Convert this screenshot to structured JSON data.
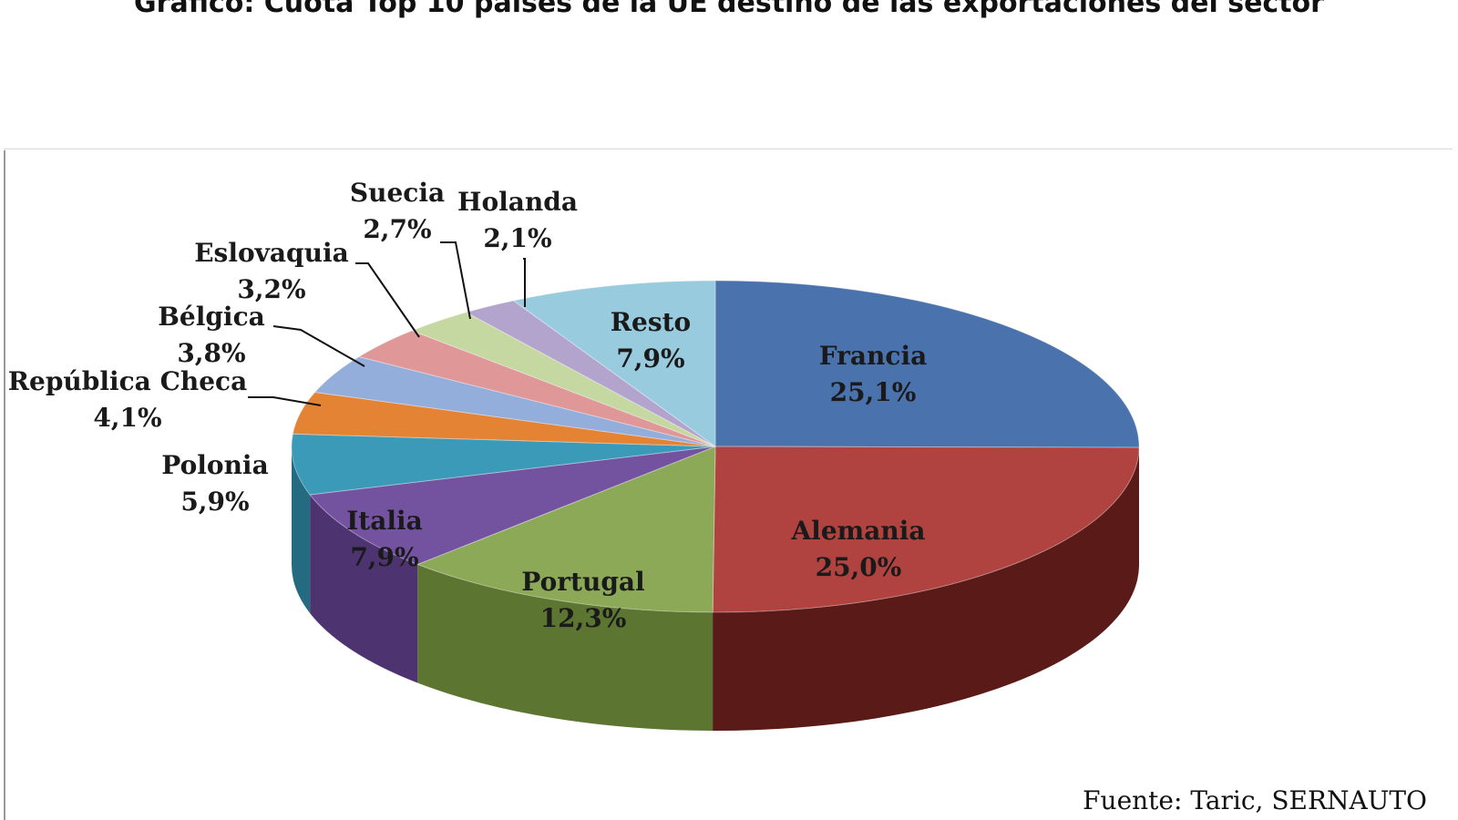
{
  "title": "Gráfico:  Cuota Top 10 paises de la UE destino de las exportaciones del sector",
  "source": "Fuente:  Taric, SERNAUTO",
  "chart_data": {
    "type": "pie",
    "title": "Gráfico:  Cuota Top 10 paises de la UE destino de las exportaciones del sector",
    "style": "3d-pie",
    "slices": [
      {
        "label": "Francia",
        "value": 25.1,
        "value_label": "25,1%",
        "color": "#4a72ac",
        "side_color": "#2c4670"
      },
      {
        "label": "Alemania",
        "value": 25.0,
        "value_label": "25,0%",
        "color": "#b04340",
        "side_color": "#5a1a18"
      },
      {
        "label": "Portugal",
        "value": 12.3,
        "value_label": "12,3%",
        "color": "#8ca957",
        "side_color": "#5c7530"
      },
      {
        "label": "Italia",
        "value": 7.9,
        "value_label": "7,9%",
        "color": "#7352a0",
        "side_color": "#4d3470"
      },
      {
        "label": "Polonia",
        "value": 5.9,
        "value_label": "5,9%",
        "color": "#3b9ab8",
        "side_color": "#246a80"
      },
      {
        "label": "República Checa",
        "value": 4.1,
        "value_label": "4,1%",
        "color": "#e58335",
        "side_color": "#a8581c"
      },
      {
        "label": "Bélgica",
        "value": 3.8,
        "value_label": "3,8%",
        "color": "#94aedc",
        "side_color": "#6a80a8"
      },
      {
        "label": "Eslovaquia",
        "value": 3.2,
        "value_label": "3,2%",
        "color": "#df9798",
        "side_color": "#a86a6a"
      },
      {
        "label": "Suecia",
        "value": 2.7,
        "value_label": "2,7%",
        "color": "#c5d8a2",
        "side_color": "#96a878"
      },
      {
        "label": "Holanda",
        "value": 2.1,
        "value_label": "2,1%",
        "color": "#b3a4cd",
        "side_color": "#85789c"
      },
      {
        "label": "Resto",
        "value": 7.9,
        "value_label": "7,9%",
        "color": "#98cbde",
        "side_color": "#6a9cb0"
      }
    ]
  }
}
